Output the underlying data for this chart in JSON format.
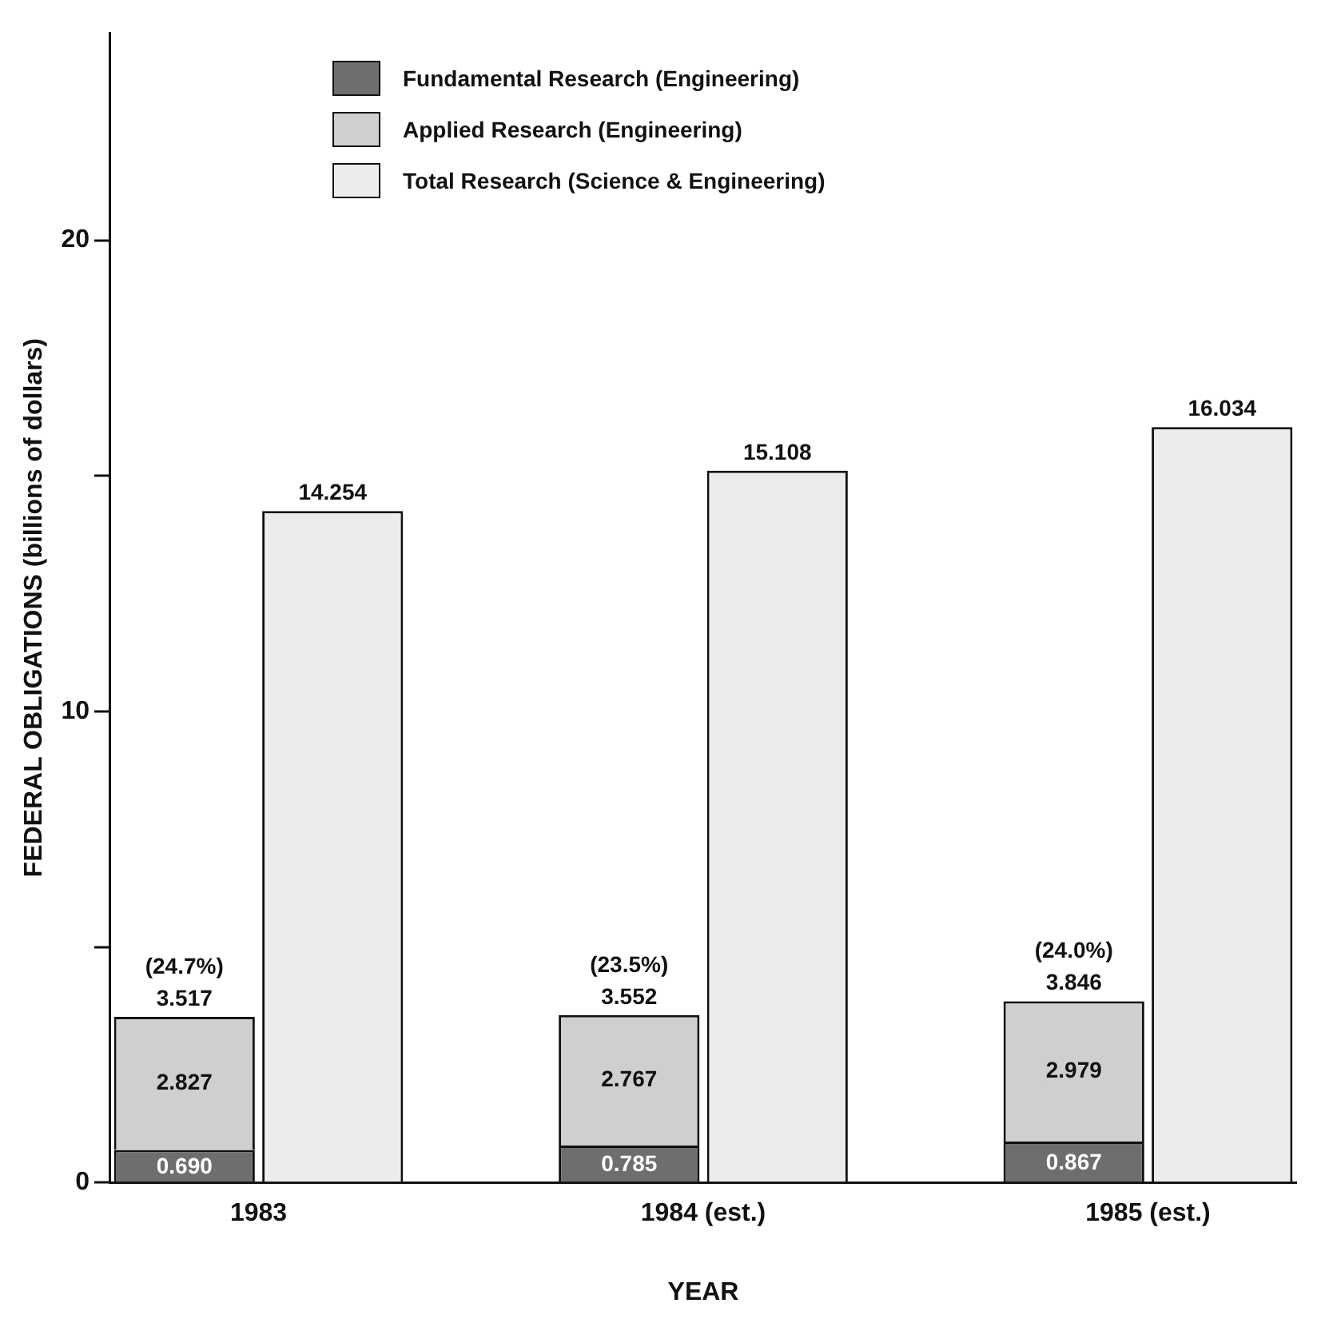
{
  "chart_data": {
    "type": "bar",
    "xlabel": "YEAR",
    "ylabel": "FEDERAL OBLIGATIONS (billions of dollars)",
    "categories": [
      "1983",
      null,
      null,
      "1984 (est.)",
      null,
      null,
      "1985 (est.)",
      null
    ],
    "stacked": true,
    "series": [
      {
        "name": "Fundamental Research (Engineering)",
        "color": "#6e6e6e",
        "values": [
          0.69,
          null,
          null,
          0.785,
          null,
          null,
          0.867,
          null
        ],
        "value_labels": [
          "0.690",
          null,
          null,
          "0.785",
          null,
          null,
          "0.867",
          null
        ]
      },
      {
        "name": "Applied Research (Engineering)",
        "color": "#cfcfcf",
        "values": [
          2.827,
          null,
          null,
          2.767,
          null,
          null,
          2.979,
          null
        ],
        "value_labels": [
          "2.827",
          null,
          null,
          "2.767",
          null,
          null,
          "2.979",
          null
        ]
      },
      {
        "name": "Total Research (Science & Engineering)",
        "color": "#ececec",
        "values": [
          null,
          14.254,
          null,
          null,
          15.108,
          null,
          null,
          16.034
        ],
        "value_labels": [
          null,
          "14.254",
          null,
          null,
          "15.108",
          null,
          null,
          "16.034"
        ]
      }
    ],
    "totals": [
      "3.517",
      null,
      null,
      "3.552",
      null,
      null,
      "3.846",
      null
    ],
    "annotations": [
      {
        "text": "(24.7%)",
        "x": "1983",
        "y": 3.517
      },
      {
        "text": "(23.5%)",
        "x": "1984 (est.)",
        "y": 3.552
      },
      {
        "text": "(24.0%)",
        "x": "1985 (est.)",
        "y": 3.846
      }
    ],
    "ylim": [
      0,
      24.4
    ],
    "yticks": [
      0,
      {
        "value": 5,
        "label": null
      },
      10,
      {
        "value": 15,
        "label": null
      },
      20
    ],
    "legend": "top left"
  }
}
